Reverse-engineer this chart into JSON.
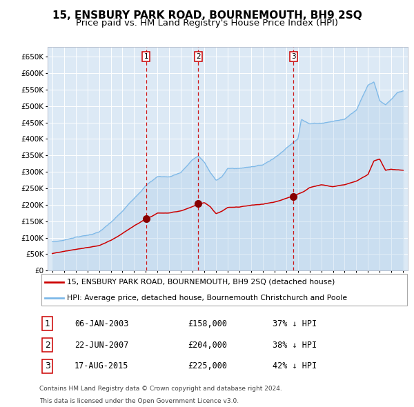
{
  "title": "15, ENSBURY PARK ROAD, BOURNEMOUTH, BH9 2SQ",
  "subtitle": "Price paid vs. HM Land Registry's House Price Index (HPI)",
  "title_fontsize": 11,
  "subtitle_fontsize": 9.5,
  "bg_color": "#dce9f5",
  "grid_color": "#ffffff",
  "hpi_color": "#7cb8e8",
  "hpi_fill_color": "#aacce8",
  "price_color": "#cc0000",
  "marker_color": "#880000",
  "vline_color": "#cc0000",
  "legend_label_price": "15, ENSBURY PARK ROAD, BOURNEMOUTH, BH9 2SQ (detached house)",
  "legend_label_hpi": "HPI: Average price, detached house, Bournemouth Christchurch and Poole",
  "transactions": [
    {
      "num": 1,
      "date": "06-JAN-2003",
      "price": 158000,
      "price_str": "£158,000",
      "pct": "37%",
      "year": 2003.03
    },
    {
      "num": 2,
      "date": "22-JUN-2007",
      "price": 204000,
      "price_str": "£204,000",
      "pct": "38%",
      "year": 2007.47
    },
    {
      "num": 3,
      "date": "17-AUG-2015",
      "price": 225000,
      "price_str": "£225,000",
      "pct": "42%",
      "year": 2015.63
    }
  ],
  "footer_line1": "Contains HM Land Registry data © Crown copyright and database right 2024.",
  "footer_line2": "This data is licensed under the Open Government Licence v3.0.",
  "ylim_max": 680000,
  "yticks": [
    0,
    50000,
    100000,
    150000,
    200000,
    250000,
    300000,
    350000,
    400000,
    450000,
    500000,
    550000,
    600000,
    650000
  ],
  "xlim_start": 1994.6,
  "xlim_end": 2025.4,
  "hpi_anchors_x": [
    1995.0,
    1995.5,
    1996.0,
    1997.0,
    1998.0,
    1999.0,
    2000.0,
    2001.0,
    2002.0,
    2003.0,
    2004.0,
    2005.0,
    2006.0,
    2007.0,
    2007.5,
    2008.0,
    2008.5,
    2009.0,
    2009.5,
    2010.0,
    2011.0,
    2012.0,
    2013.0,
    2014.0,
    2015.0,
    2016.0,
    2016.3,
    2017.0,
    2018.0,
    2019.0,
    2020.0,
    2021.0,
    2022.0,
    2022.5,
    2023.0,
    2023.5,
    2024.0,
    2024.5,
    2025.0
  ],
  "hpi_anchors_y": [
    88000,
    90000,
    93000,
    103000,
    108000,
    118000,
    145000,
    178000,
    218000,
    258000,
    285000,
    284000,
    298000,
    336000,
    347000,
    328000,
    296000,
    272000,
    284000,
    308000,
    308000,
    314000,
    320000,
    342000,
    372000,
    400000,
    462000,
    448000,
    450000,
    456000,
    462000,
    492000,
    568000,
    578000,
    522000,
    508000,
    524000,
    542000,
    546000
  ],
  "price_anchors_x": [
    1995.0,
    1996.0,
    1997.0,
    1998.0,
    1999.0,
    2000.0,
    2001.0,
    2002.0,
    2003.03,
    2003.5,
    2004.0,
    2005.0,
    2006.0,
    2007.0,
    2007.47,
    2008.0,
    2008.5,
    2009.0,
    2009.5,
    2010.0,
    2011.0,
    2012.0,
    2013.0,
    2014.0,
    2015.0,
    2015.63,
    2016.0,
    2016.5,
    2017.0,
    2018.0,
    2019.0,
    2020.0,
    2021.0,
    2022.0,
    2022.5,
    2023.0,
    2023.5,
    2024.0,
    2025.0
  ],
  "price_anchors_y": [
    52000,
    57000,
    63000,
    68000,
    74000,
    90000,
    112000,
    136000,
    158000,
    165000,
    175000,
    175000,
    182000,
    196000,
    204000,
    208000,
    196000,
    174000,
    181000,
    192000,
    192000,
    197000,
    200000,
    207000,
    218000,
    225000,
    230000,
    237000,
    250000,
    260000,
    253000,
    260000,
    272000,
    293000,
    334000,
    340000,
    306000,
    308000,
    305000
  ]
}
